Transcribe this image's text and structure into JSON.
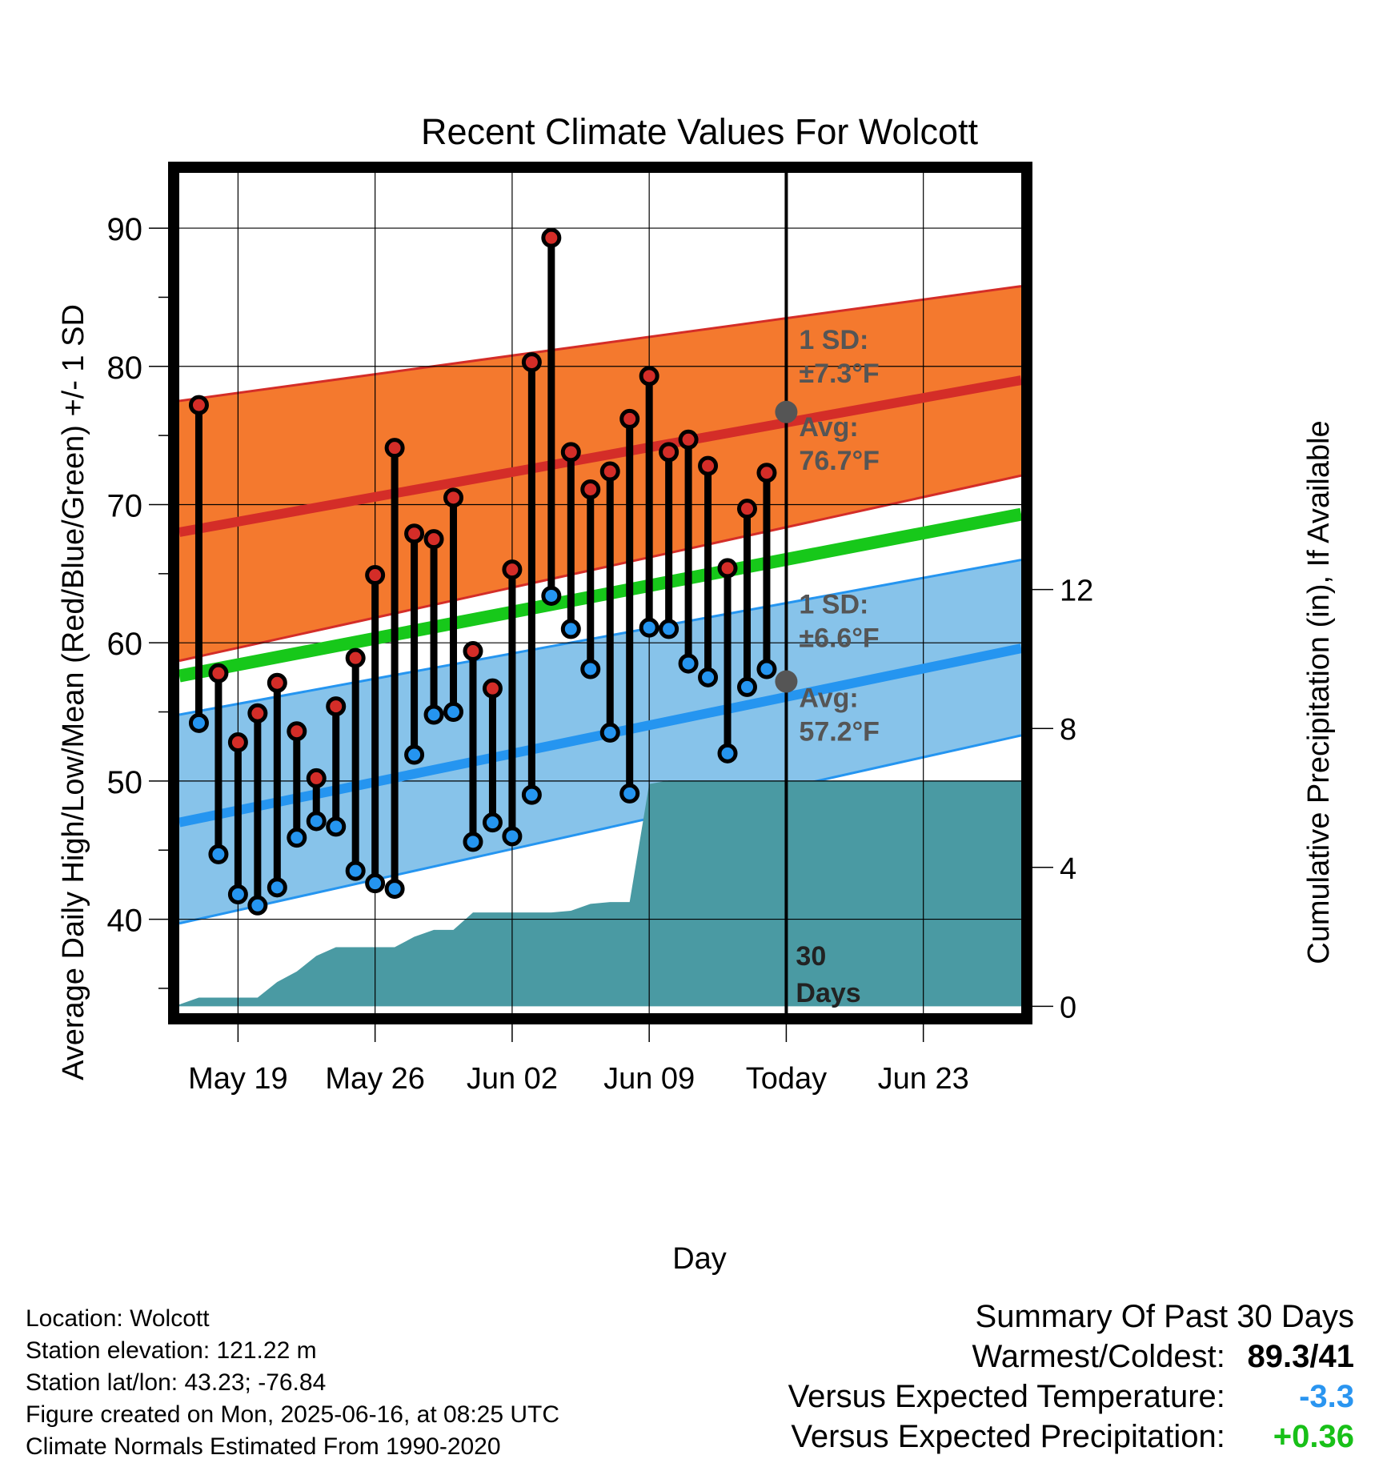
{
  "chart_data": {
    "type": "line",
    "title": "Recent Climate Values For Wolcott",
    "xlabel": "Day",
    "ylabel": "Average Daily High/Low/Mean (Red/Blue/Green) +/- 1 SD",
    "y2label": "Cumulative Precipitation (in), If Available",
    "ylim": [
      33.2,
      94
    ],
    "y2lim": [
      -0.2,
      24
    ],
    "x_start": "2025-05-16",
    "x_end": "2025-06-28",
    "today": "2025-06-16",
    "x_tick_labels": [
      {
        "date": "2025-05-19",
        "label": "May 19"
      },
      {
        "date": "2025-05-26",
        "label": "May 26"
      },
      {
        "date": "2025-06-02",
        "label": "Jun 02"
      },
      {
        "date": "2025-06-09",
        "label": "Jun 09"
      },
      {
        "date": "2025-06-16",
        "label": "Today"
      },
      {
        "date": "2025-06-23",
        "label": "Jun 23"
      }
    ],
    "y_ticks": [
      40,
      50,
      60,
      70,
      80,
      90
    ],
    "y2_ticks": [
      0,
      4,
      8,
      12
    ],
    "grid": true,
    "normals": {
      "dates": [
        "2025-05-16",
        "2025-06-28"
      ],
      "high_mean": [
        68,
        79
      ],
      "high_upper": [
        77.5,
        85.8
      ],
      "high_lower": [
        58.7,
        72.1
      ],
      "low_mean": [
        47,
        59.6
      ],
      "low_upper": [
        54.8,
        66
      ],
      "low_lower": [
        39.7,
        53.3
      ],
      "daily_mean": [
        57.6,
        69.3
      ]
    },
    "annotations": {
      "high_sd": {
        "line1": "1 SD:",
        "line2": "±7.3°F",
        "y": 81.5
      },
      "high_avg": {
        "line1": "Avg:",
        "line2": "76.7°F",
        "y": 76.7
      },
      "low_sd": {
        "line1": "1 SD:",
        "line2": "±6.6°F",
        "y": 62
      },
      "low_avg": {
        "line1": "Avg:",
        "line2": "57.2°F",
        "y": 57.2
      },
      "days_line1": "30",
      "days_line2": "Days"
    },
    "series": [
      {
        "name": "High",
        "color": "#d03030",
        "dates": [
          "2025-05-17",
          "2025-05-18",
          "2025-05-19",
          "2025-05-20",
          "2025-05-21",
          "2025-05-22",
          "2025-05-23",
          "2025-05-24",
          "2025-05-25",
          "2025-05-26",
          "2025-05-27",
          "2025-05-28",
          "2025-05-29",
          "2025-05-30",
          "2025-05-31",
          "2025-06-01",
          "2025-06-02",
          "2025-06-03",
          "2025-06-04",
          "2025-06-05",
          "2025-06-06",
          "2025-06-07",
          "2025-06-08",
          "2025-06-09",
          "2025-06-10",
          "2025-06-11",
          "2025-06-12",
          "2025-06-13",
          "2025-06-14",
          "2025-06-15"
        ],
        "values": [
          77.2,
          57.8,
          52.8,
          54.9,
          57.1,
          53.6,
          50.2,
          55.4,
          58.9,
          64.9,
          74.1,
          67.9,
          67.5,
          70.5,
          59.4,
          56.7,
          65.3,
          80.3,
          89.3,
          73.8,
          71.1,
          72.4,
          76.2,
          79.3,
          73.8,
          74.7,
          72.8,
          65.4,
          69.7,
          72.3
        ]
      },
      {
        "name": "Low",
        "color": "#2090f0",
        "dates": [
          "2025-05-17",
          "2025-05-18",
          "2025-05-19",
          "2025-05-20",
          "2025-05-21",
          "2025-05-22",
          "2025-05-23",
          "2025-05-24",
          "2025-05-25",
          "2025-05-26",
          "2025-05-27",
          "2025-05-28",
          "2025-05-29",
          "2025-05-30",
          "2025-05-31",
          "2025-06-01",
          "2025-06-02",
          "2025-06-03",
          "2025-06-04",
          "2025-06-05",
          "2025-06-06",
          "2025-06-07",
          "2025-06-08",
          "2025-06-09",
          "2025-06-10",
          "2025-06-11",
          "2025-06-12",
          "2025-06-13",
          "2025-06-14",
          "2025-06-15"
        ],
        "values": [
          54.2,
          44.7,
          41.8,
          41,
          42.3,
          45.9,
          47.1,
          46.7,
          43.5,
          42.6,
          42.2,
          51.9,
          54.8,
          55,
          45.6,
          47,
          46,
          49,
          63.4,
          61,
          58.1,
          53.5,
          49.1,
          61.1,
          61,
          58.5,
          57.5,
          52,
          56.8,
          58.1
        ]
      },
      {
        "name": "Cumulative Precipitation",
        "color": "#4a9aa3",
        "dates": [
          "2025-05-16",
          "2025-05-17",
          "2025-05-18",
          "2025-05-19",
          "2025-05-20",
          "2025-05-21",
          "2025-05-22",
          "2025-05-23",
          "2025-05-24",
          "2025-05-25",
          "2025-05-26",
          "2025-05-27",
          "2025-05-28",
          "2025-05-29",
          "2025-05-30",
          "2025-05-31",
          "2025-06-01",
          "2025-06-02",
          "2025-06-03",
          "2025-06-04",
          "2025-06-05",
          "2025-06-06",
          "2025-06-07",
          "2025-06-08",
          "2025-06-09",
          "2025-06-10",
          "2025-06-11",
          "2025-06-16",
          "2025-06-28"
        ],
        "values": [
          0.05,
          0.25,
          0.25,
          0.25,
          0.25,
          0.7,
          1.0,
          1.45,
          1.7,
          1.7,
          1.7,
          1.7,
          2.0,
          2.2,
          2.2,
          2.7,
          2.7,
          2.7,
          2.7,
          2.7,
          2.75,
          2.95,
          3.0,
          3.0,
          6.4,
          6.5,
          6.5,
          6.5,
          6.5
        ]
      }
    ],
    "colors": {
      "high_band": "#f4792e",
      "high_line": "#d42d28",
      "low_band": "#87c3ea",
      "low_line": "#2595f0",
      "mean_line": "#17c81a",
      "precip": "#4a9aa3",
      "annotation": "#555555"
    }
  },
  "footer": {
    "location": "Location: Wolcott",
    "elevation": "Station elevation: 121.22 m",
    "latlon": "Station lat/lon: 43.23; -76.84",
    "created": "Figure created on Mon, 2025-06-16, at 08:25 UTC",
    "normals": "Climate Normals Estimated From 1990-2020"
  },
  "summary": {
    "title": "Summary Of Past 30 Days",
    "warmest_label": "Warmest/Coldest:",
    "warmest_value": "89.3/41",
    "temp_label": "Versus Expected Temperature:",
    "temp_value": "-3.3",
    "temp_color": "#2a95f0",
    "precip_label": "Versus Expected Precipitation:",
    "precip_value": "+0.36",
    "precip_color": "#18c018"
  }
}
